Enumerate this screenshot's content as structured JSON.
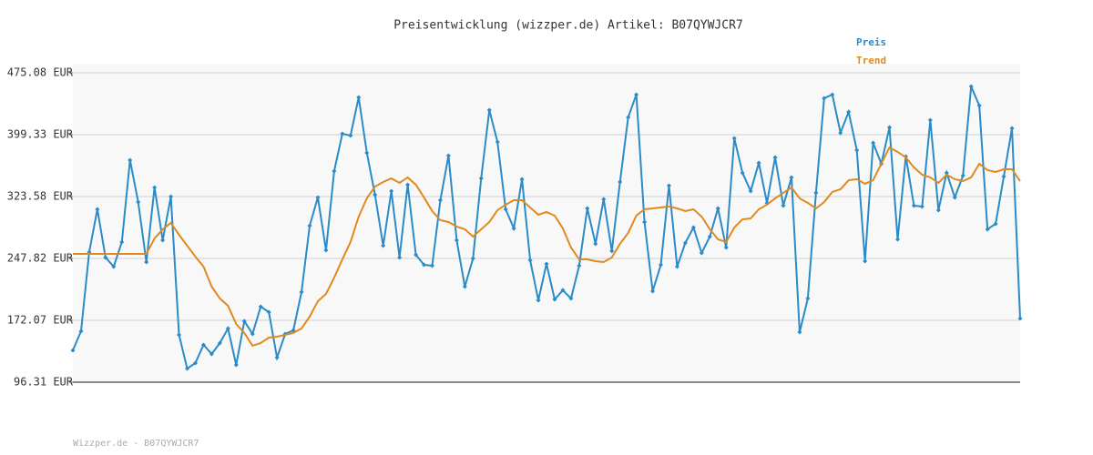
{
  "chart_data": {
    "type": "line",
    "title": "Preisentwicklung (wizzper.de) Artikel: B07QYWJCR7",
    "footer": "Wizzper.de - B07QYWJCR7",
    "ylim": [
      96.31,
      475.08
    ],
    "yticks": [
      {
        "value": 96.31,
        "label": "96.31 EUR"
      },
      {
        "value": 172.07,
        "label": "172.07 EUR"
      },
      {
        "value": 247.82,
        "label": "247.82 EUR"
      },
      {
        "value": 323.58,
        "label": "323.58 EUR"
      },
      {
        "value": 399.33,
        "label": "399.33 EUR"
      },
      {
        "value": 475.08,
        "label": "475.08 EUR"
      }
    ],
    "grid": true,
    "legend": "top-right",
    "series": [
      {
        "name": "Preis",
        "color": "#2a8bc8",
        "markers": true,
        "values": [
          135.3,
          158.7,
          255.6,
          308.0,
          249.0,
          237.8,
          267.9,
          368.2,
          316.9,
          243.4,
          334.7,
          270.1,
          323.6,
          154.3,
          113.0,
          119.7,
          142.0,
          130.9,
          144.2,
          162.1,
          117.5,
          171.0,
          155.4,
          188.8,
          182.1,
          126.4,
          155.4,
          159.8,
          206.6,
          287.9,
          322.5,
          257.9,
          354.8,
          400.5,
          398.2,
          445.0,
          377.1,
          325.8,
          263.4,
          330.3,
          249.0,
          338.1,
          252.3,
          240.0,
          238.9,
          319.1,
          373.7,
          270.1,
          213.3,
          247.8,
          345.9,
          429.4,
          390.4,
          308.0,
          284.6,
          344.8,
          245.6,
          196.6,
          241.2,
          197.7,
          208.9,
          198.8,
          238.9,
          309.1,
          265.7,
          320.3,
          256.8,
          341.4,
          420.5,
          448.4,
          292.4,
          207.7,
          240.0,
          337.0,
          237.8,
          266.8,
          285.7,
          254.5,
          274.6,
          309.1,
          261.2,
          394.9,
          352.6,
          330.3,
          364.8,
          315.8,
          371.5,
          312.5,
          347.0,
          157.6,
          198.8,
          328.1,
          443.9,
          448.4,
          401.6,
          427.2,
          380.4,
          244.5,
          389.3,
          363.7,
          408.3,
          271.2,
          372.6,
          312.5,
          311.3,
          417.2,
          306.9,
          352.6,
          322.5,
          349.2,
          458.4,
          435.0,
          283.5,
          290.2,
          348.1,
          407.1,
          174.3
        ]
      },
      {
        "name": "Trend",
        "color": "#e08a1e",
        "markers": false,
        "values": [
          253.4,
          253.4,
          253.4,
          253.4,
          253.4,
          253.4,
          253.4,
          253.4,
          253.4,
          253.4,
          272.3,
          283.5,
          291.3,
          276.8,
          263.4,
          250.1,
          237.8,
          213.3,
          198.8,
          189.9,
          167.6,
          156.5,
          140.9,
          144.2,
          150.9,
          152.0,
          154.3,
          156.5,
          162.1,
          176.6,
          195.5,
          204.4,
          224.4,
          246.7,
          267.9,
          299.1,
          321.4,
          335.8,
          341.4,
          345.9,
          340.3,
          347.0,
          338.1,
          322.5,
          305.8,
          294.6,
          292.4,
          286.8,
          283.5,
          274.6,
          283.5,
          292.4,
          306.9,
          313.6,
          319.1,
          319.1,
          310.2,
          301.3,
          304.7,
          300.2,
          284.6,
          261.2,
          246.7,
          246.7,
          244.5,
          243.4,
          249.0,
          265.7,
          279.0,
          300.2,
          308.0,
          309.1,
          310.2,
          311.3,
          309.1,
          305.8,
          308.0,
          299.1,
          283.5,
          271.2,
          267.9,
          285.7,
          295.7,
          296.8,
          308.0,
          313.6,
          321.4,
          328.1,
          334.7,
          321.4,
          315.8,
          309.1,
          316.9,
          329.2,
          332.5,
          343.6,
          344.8,
          339.2,
          343.6,
          363.7,
          383.7,
          378.2,
          371.5,
          359.2,
          350.3,
          347.0,
          340.3,
          350.3,
          344.8,
          342.5,
          347.0,
          363.7,
          355.9,
          353.7,
          357.0,
          357.0,
          342.5
        ]
      }
    ]
  }
}
